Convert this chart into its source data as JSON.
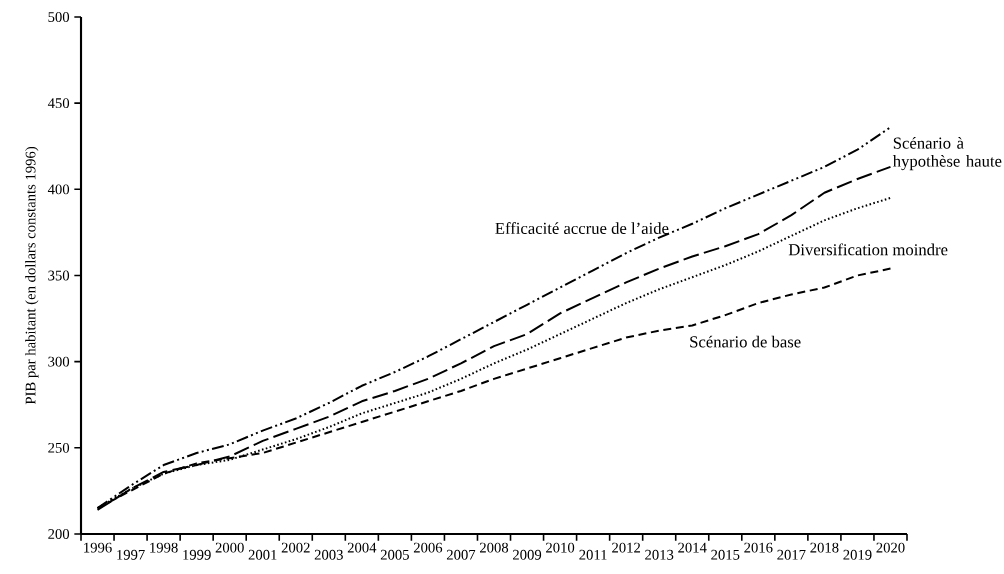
{
  "chart_data": {
    "type": "line",
    "ylabel": "PIB par habitant (en dollars constants 1996)",
    "categories": [
      "1996",
      "1997",
      "1998",
      "1999",
      "2000",
      "2001",
      "2002",
      "2003",
      "2004",
      "2005",
      "2006",
      "2007",
      "2008",
      "2009",
      "2010",
      "2011",
      "2012",
      "2013",
      "2014",
      "2015",
      "2016",
      "2017",
      "2018",
      "2019",
      "2020"
    ],
    "ylim": [
      200,
      500
    ],
    "yticks": [
      200,
      250,
      300,
      350,
      400,
      450,
      500
    ],
    "grid": false,
    "legend": false,
    "marker": "none",
    "series": [
      {
        "name": "Efficacité accrue de l’aide",
        "color": "#000000",
        "line_style": "dashdotdotted",
        "values": [
          215,
          228,
          240,
          247,
          252,
          260,
          267,
          276,
          286,
          294,
          303,
          313,
          323,
          333,
          343,
          353,
          363,
          372,
          380,
          389,
          397,
          405,
          413,
          423,
          436
        ]
      },
      {
        "name": "Scénario à hypothèse haute",
        "color": "#000000",
        "line_style": "long dashed",
        "values": [
          214,
          226,
          236,
          240,
          245,
          254,
          261,
          268,
          277,
          283,
          290,
          299,
          309,
          316,
          328,
          337,
          346,
          354,
          361,
          367,
          374,
          385,
          398,
          406,
          413
        ]
      },
      {
        "name": "Diversification moindre",
        "color": "#000000",
        "line_style": "dotted",
        "values": [
          215,
          226,
          235,
          240,
          243,
          249,
          255,
          262,
          270,
          276,
          282,
          290,
          299,
          307,
          316,
          325,
          334,
          342,
          349,
          356,
          364,
          373,
          382,
          389,
          395
        ]
      },
      {
        "name": "Scénario de base",
        "color": "#000000",
        "line_style": "dashed",
        "values": [
          215,
          225,
          235,
          241,
          244,
          247,
          253,
          259,
          265,
          271,
          277,
          283,
          290,
          296,
          302,
          308,
          314,
          318,
          321,
          327,
          334,
          339,
          343,
          350,
          354
        ]
      }
    ]
  }
}
